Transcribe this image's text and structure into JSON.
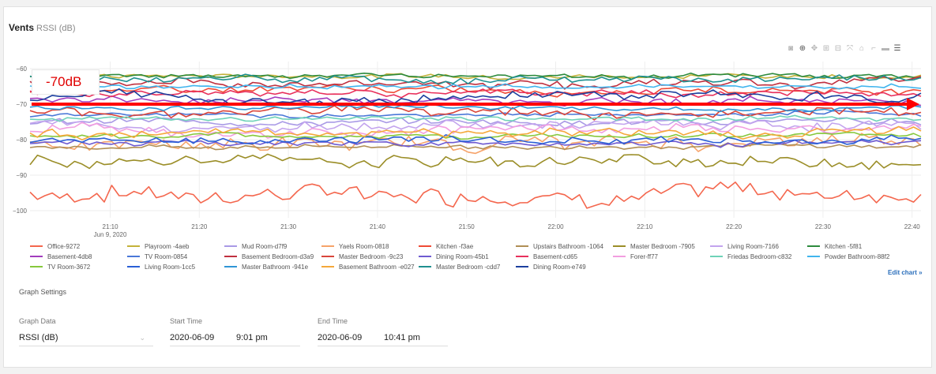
{
  "header": {
    "title": "Vents",
    "unit": "RSSI (dB)"
  },
  "modebar": {
    "icons": [
      "camera-icon",
      "zoom-icon",
      "pan-icon",
      "zoom-in-icon",
      "zoom-out-icon",
      "autoscale-icon",
      "home-icon",
      "spike-lines-icon",
      "hover-closest-icon",
      "hover-compare-icon"
    ],
    "glyphs": [
      "◙",
      "⊕",
      "✥",
      "⊞",
      "⊟",
      "⤧",
      "⌂",
      "⌐",
      "▬",
      "☰"
    ]
  },
  "annotation": {
    "label": "-70dB",
    "color": "#e00000"
  },
  "edit_chart": "Edit chart »",
  "graph_settings": {
    "title": "Graph Settings",
    "graph_data_label": "Graph Data",
    "graph_data_value": "RSSI (dB)",
    "start_label": "Start Time",
    "start_date": "2020-06-09",
    "start_time": "9:01 pm",
    "end_label": "End Time",
    "end_date": "2020-06-09",
    "end_time": "10:41 pm"
  },
  "chart_data": {
    "type": "line",
    "x_range_minutes": [
      61,
      161
    ],
    "ylim": [
      -102,
      -58
    ],
    "y_ticks": [
      -60,
      -70,
      -80,
      -90,
      -100
    ],
    "x_ticks": [
      {
        "m": 70,
        "label": "21:10",
        "sub": "Jun 9, 2020"
      },
      {
        "m": 80,
        "label": "21:20"
      },
      {
        "m": 90,
        "label": "21:30"
      },
      {
        "m": 100,
        "label": "21:40"
      },
      {
        "m": 110,
        "label": "21:50"
      },
      {
        "m": 120,
        "label": "22:00"
      },
      {
        "m": 130,
        "label": "22:10"
      },
      {
        "m": 140,
        "label": "22:20"
      },
      {
        "m": 150,
        "label": "22:30"
      },
      {
        "m": 160,
        "label": "22:40"
      }
    ],
    "grid": true,
    "legend_position": "bottom",
    "reference_line": {
      "y": -70,
      "color": "#ff0000"
    },
    "series": [
      {
        "name": "Office-9272",
        "color": "#f4674e",
        "level": -95,
        "amp": 4
      },
      {
        "name": "Playroom -4aeb",
        "color": "#c4b23a",
        "level": -62,
        "amp": 1
      },
      {
        "name": "Mud Room-d7f9",
        "color": "#a99ae6",
        "level": -75,
        "amp": 1.5
      },
      {
        "name": "Yaels Room-0818",
        "color": "#f6a36a",
        "level": -81,
        "amp": 3
      },
      {
        "name": "Kitchen -f3ae",
        "color": "#ef4b36",
        "level": -66,
        "amp": 1.5
      },
      {
        "name": "Upstairs Bathroom -1064",
        "color": "#b08f55",
        "level": -82,
        "amp": 1
      },
      {
        "name": "Master Bedroom -7905",
        "color": "#9b8e28",
        "level": -86,
        "amp": 2.5
      },
      {
        "name": "Living Room-7166",
        "color": "#c3a4ee",
        "level": -76,
        "amp": 2
      },
      {
        "name": "Kitchen -5f81",
        "color": "#2e8b3e",
        "level": -62,
        "amp": 1
      },
      {
        "name": "Basement-4db8",
        "color": "#a23cbd",
        "level": -69,
        "amp": 1.5
      },
      {
        "name": "TV Room-0854",
        "color": "#4a78d8",
        "level": -73,
        "amp": 1
      },
      {
        "name": "Basement Bedroom-d3a9",
        "color": "#c0303f",
        "level": -64,
        "amp": 2
      },
      {
        "name": "Master Bedroom -9c23",
        "color": "#d9453b",
        "level": -72,
        "amp": 2
      },
      {
        "name": "Dining Room-45b1",
        "color": "#6e5ad1",
        "level": -81,
        "amp": 1
      },
      {
        "name": "Basement-cd65",
        "color": "#e8305c",
        "level": -67,
        "amp": 1.5
      },
      {
        "name": "Forer-ff77",
        "color": "#f29ee0",
        "level": -77,
        "amp": 2
      },
      {
        "name": "Friedas Bedroom-c832",
        "color": "#6ed2b8",
        "level": -74,
        "amp": 1
      },
      {
        "name": "Powder Bathroom-88f2",
        "color": "#41b5ee",
        "level": -65,
        "amp": 1
      },
      {
        "name": "TV Room-3672",
        "color": "#86c83c",
        "level": -79,
        "amp": 1
      },
      {
        "name": "Living Room-1cc5",
        "color": "#2a5fd6",
        "level": -80,
        "amp": 1.5
      },
      {
        "name": "Master Bathroom -941e",
        "color": "#2f95d6",
        "level": -71,
        "amp": 1
      },
      {
        "name": "Basement Bathroom -e027",
        "color": "#f5a83a",
        "level": -78,
        "amp": 2
      },
      {
        "name": "Master Bedroom -cdd7",
        "color": "#1f9090",
        "level": -63,
        "amp": 1.5
      },
      {
        "name": "Dining Room-e749",
        "color": "#1c3f9e",
        "level": -68,
        "amp": 2
      }
    ]
  }
}
